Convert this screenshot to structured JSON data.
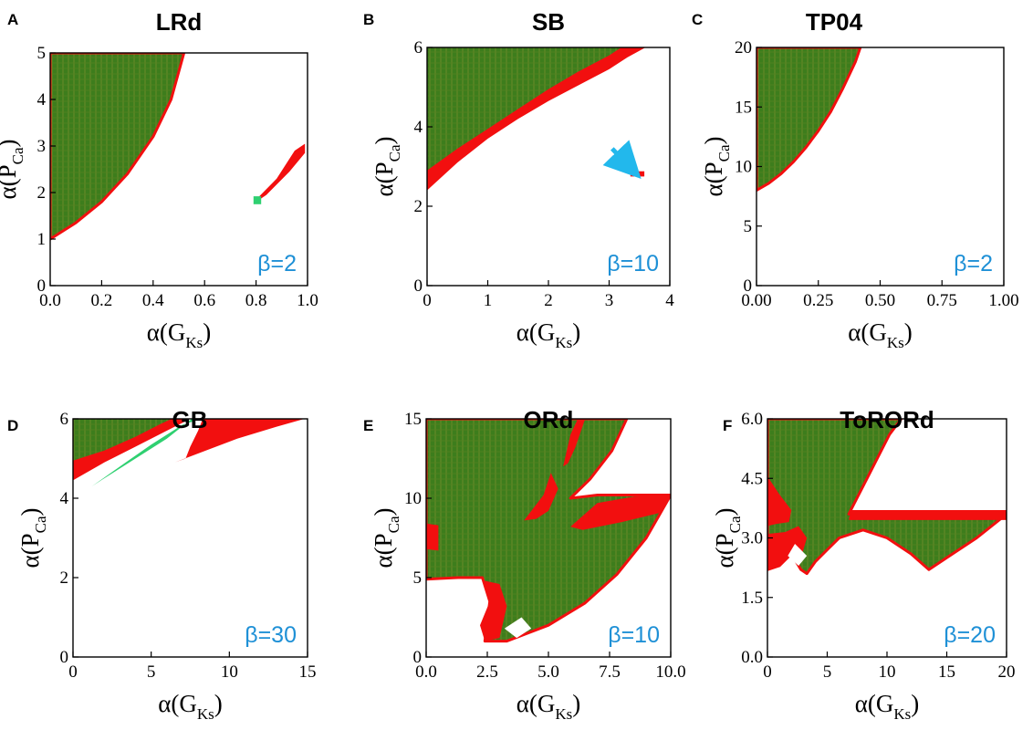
{
  "colors": {
    "green_region": "#3d7d1c",
    "green_hatch": "#6a8a2a",
    "red_region": "#f20f0f",
    "light_green": "#2fd071",
    "beta_text": "#1e90d6",
    "arrow": "#22b8ec"
  },
  "chart_data": [
    {
      "panel": "A",
      "title": "LRd",
      "type": "heatmap",
      "xlabel": "α(G",
      "xlabel_sub": "Ks",
      "xlabel_end": ")",
      "ylabel": "α(P",
      "ylabel_sub": "Ca",
      "ylabel_end": ")",
      "xlim": [
        0,
        1.0
      ],
      "ylim": [
        0,
        5
      ],
      "xticks": [
        0,
        0.2,
        0.4,
        0.6,
        0.8,
        1.0
      ],
      "xtick_labels": [
        "0.0",
        "0.2",
        "0.4",
        "0.6",
        "0.8",
        "1.0"
      ],
      "yticks": [
        0,
        1,
        2,
        3,
        4,
        5
      ],
      "ytick_labels": [
        "0",
        "1",
        "2",
        "3",
        "4",
        "5"
      ],
      "annotation": "β=2",
      "regions": [
        {
          "color": "green",
          "outline": "red",
          "points": [
            [
              0,
              1.0
            ],
            [
              0.1,
              1.35
            ],
            [
              0.2,
              1.8
            ],
            [
              0.3,
              2.4
            ],
            [
              0.4,
              3.2
            ],
            [
              0.47,
              4.0
            ],
            [
              0.52,
              5.0
            ],
            [
              0,
              5
            ]
          ]
        },
        {
          "color": "red",
          "points": [
            [
              0.8,
              1.85
            ],
            [
              0.88,
              2.3
            ],
            [
              0.95,
              2.9
            ],
            [
              0.99,
              3.05
            ],
            [
              0.99,
              2.85
            ],
            [
              0.93,
              2.45
            ],
            [
              0.84,
              1.95
            ],
            [
              0.8,
              1.8
            ]
          ]
        },
        {
          "color": "lightgreen",
          "points": [
            [
              0.79,
              1.75
            ],
            [
              0.82,
              1.75
            ],
            [
              0.82,
              1.92
            ],
            [
              0.79,
              1.92
            ]
          ]
        }
      ]
    },
    {
      "panel": "B",
      "title": "SB",
      "type": "heatmap",
      "xlabel": "α(G",
      "xlabel_sub": "Ks",
      "xlabel_end": ")",
      "ylabel": "α(P",
      "ylabel_sub": "Ca",
      "ylabel_end": ")",
      "xlim": [
        0,
        4
      ],
      "ylim": [
        0,
        6
      ],
      "xticks": [
        0,
        1,
        2,
        3,
        4
      ],
      "xtick_labels": [
        "0",
        "1",
        "2",
        "3",
        "4"
      ],
      "yticks": [
        0,
        2,
        4,
        6
      ],
      "ytick_labels": [
        "0",
        "2",
        "4",
        "6"
      ],
      "annotation": "β=10",
      "regions": [
        {
          "color": "red",
          "points": [
            [
              0,
              2.4
            ],
            [
              0.5,
              3.1
            ],
            [
              1.0,
              3.7
            ],
            [
              1.5,
              4.2
            ],
            [
              2.0,
              4.65
            ],
            [
              2.5,
              5.05
            ],
            [
              3.0,
              5.45
            ],
            [
              3.3,
              5.75
            ],
            [
              3.6,
              6.0
            ],
            [
              0,
              6
            ]
          ]
        },
        {
          "color": "green",
          "points": [
            [
              0,
              2.9
            ],
            [
              0.5,
              3.45
            ],
            [
              1.0,
              3.95
            ],
            [
              1.5,
              4.45
            ],
            [
              2.0,
              4.95
            ],
            [
              2.5,
              5.4
            ],
            [
              3.0,
              5.8
            ],
            [
              3.2,
              6.0
            ],
            [
              0,
              6
            ]
          ]
        },
        {
          "color": "red",
          "points": [
            [
              3.35,
              2.75
            ],
            [
              3.58,
              2.75
            ],
            [
              3.58,
              2.88
            ],
            [
              3.35,
              2.88
            ]
          ]
        }
      ],
      "arrow": {
        "from": [
          3.05,
          3.45
        ],
        "to": [
          3.32,
          3.02
        ]
      }
    },
    {
      "panel": "C",
      "title": "TP04",
      "type": "heatmap",
      "xlabel": "α(G",
      "xlabel_sub": "Ks",
      "xlabel_end": ")",
      "ylabel": "α(P",
      "ylabel_sub": "Ca",
      "ylabel_end": ")",
      "xlim": [
        0,
        1.0
      ],
      "ylim": [
        0,
        20
      ],
      "xticks": [
        0,
        0.25,
        0.5,
        0.75,
        1.0
      ],
      "xtick_labels": [
        "0.00",
        "0.25",
        "0.50",
        "0.75",
        "1.00"
      ],
      "yticks": [
        0,
        5,
        10,
        15,
        20
      ],
      "ytick_labels": [
        "0",
        "5",
        "10",
        "15",
        "20"
      ],
      "annotation": "β=2",
      "regions": [
        {
          "color": "green",
          "outline": "red",
          "points": [
            [
              0,
              8.0
            ],
            [
              0.05,
              8.6
            ],
            [
              0.1,
              9.4
            ],
            [
              0.15,
              10.4
            ],
            [
              0.2,
              11.6
            ],
            [
              0.25,
              13.0
            ],
            [
              0.3,
              14.6
            ],
            [
              0.35,
              16.6
            ],
            [
              0.4,
              18.8
            ],
            [
              0.42,
              20
            ],
            [
              0,
              20
            ]
          ]
        }
      ]
    },
    {
      "panel": "D",
      "title": "GB",
      "type": "heatmap",
      "xlabel": "α(G",
      "xlabel_sub": "Ks",
      "xlabel_end": ")",
      "ylabel": "α(P",
      "ylabel_sub": "Ca",
      "ylabel_end": ")",
      "xlim": [
        0,
        15
      ],
      "ylim": [
        0,
        6
      ],
      "xticks": [
        0,
        5,
        10,
        15
      ],
      "xtick_labels": [
        "0",
        "5",
        "10",
        "15"
      ],
      "yticks": [
        0,
        2,
        4,
        6
      ],
      "ytick_labels": [
        "0",
        "2",
        "4",
        "6"
      ],
      "annotation": "β=30",
      "regions": [
        {
          "color": "red",
          "points": [
            [
              0,
              4.45
            ],
            [
              2,
              4.9
            ],
            [
              4,
              5.3
            ],
            [
              6,
              5.7
            ],
            [
              7.5,
              6.0
            ],
            [
              0,
              6
            ]
          ]
        },
        {
          "color": "green",
          "points": [
            [
              0,
              4.95
            ],
            [
              2,
              5.2
            ],
            [
              4,
              5.55
            ],
            [
              5.5,
              5.85
            ],
            [
              6.3,
              6.0
            ],
            [
              0,
              6
            ]
          ]
        },
        {
          "color": "lightgreen",
          "points": [
            [
              1.2,
              4.3
            ],
            [
              3,
              4.8
            ],
            [
              5,
              5.35
            ],
            [
              7.0,
              5.85
            ],
            [
              8.2,
              6.0
            ],
            [
              7.6,
              6.0
            ],
            [
              6,
              5.5
            ],
            [
              4,
              5.0
            ],
            [
              1.8,
              4.45
            ]
          ]
        },
        {
          "color": "red",
          "points": [
            [
              6.5,
              4.9
            ],
            [
              8.5,
              5.2
            ],
            [
              10.5,
              5.5
            ],
            [
              13,
              5.8
            ],
            [
              14.8,
              6.0
            ],
            [
              8.3,
              6.0
            ],
            [
              8.0,
              5.7
            ],
            [
              7.5,
              5.3
            ],
            [
              7.2,
              5.0
            ]
          ]
        }
      ]
    },
    {
      "panel": "E",
      "title": "ORd",
      "type": "heatmap",
      "xlabel": "α(G",
      "xlabel_sub": "Ks",
      "xlabel_end": ")",
      "ylabel": "α(P",
      "ylabel_sub": "Ca",
      "ylabel_end": ")",
      "xlim": [
        0,
        10.0
      ],
      "ylim": [
        0,
        15
      ],
      "xticks": [
        0,
        2.5,
        5.0,
        7.5,
        10.0
      ],
      "xtick_labels": [
        "0.0",
        "2.5",
        "5.0",
        "7.5",
        "10.0"
      ],
      "yticks": [
        0,
        5,
        10,
        15
      ],
      "ytick_labels": [
        "0",
        "5",
        "10",
        "15"
      ],
      "annotation": "β=10",
      "regions": [
        {
          "color": "green",
          "outline": "red",
          "points": [
            [
              0,
              4.9
            ],
            [
              1.3,
              5.0
            ],
            [
              2.3,
              5.0
            ],
            [
              2.6,
              3.5
            ],
            [
              2.4,
              1.0
            ],
            [
              3.3,
              1.0
            ],
            [
              5.0,
              2.0
            ],
            [
              6.5,
              3.4
            ],
            [
              7.8,
              5.2
            ],
            [
              9.0,
              7.5
            ],
            [
              10.0,
              10.2
            ],
            [
              7.0,
              10.2
            ],
            [
              5.9,
              10.0
            ],
            [
              6.7,
              11.2
            ],
            [
              7.6,
              13.0
            ],
            [
              8.2,
              15.0
            ],
            [
              0,
              15
            ]
          ]
        },
        {
          "color": "red",
          "points": [
            [
              5.9,
              8.2
            ],
            [
              7.0,
              9.7
            ],
            [
              8.5,
              10.1
            ],
            [
              10.0,
              10.2
            ],
            [
              9.6,
              9.1
            ],
            [
              8.0,
              8.5
            ],
            [
              6.4,
              8.0
            ]
          ]
        },
        {
          "color": "red",
          "points": [
            [
              2.4,
              4.8
            ],
            [
              3.0,
              4.6
            ],
            [
              3.3,
              3.2
            ],
            [
              3.0,
              1.2
            ],
            [
              2.4,
              1.0
            ],
            [
              2.2,
              2.0
            ],
            [
              2.6,
              3.5
            ]
          ]
        },
        {
          "color": "red",
          "points": [
            [
              0,
              6.8
            ],
            [
              0.5,
              6.7
            ],
            [
              0.5,
              8.3
            ],
            [
              0,
              8.4
            ]
          ]
        },
        {
          "color": "red",
          "points": [
            [
              4.0,
              8.6
            ],
            [
              4.8,
              10.2
            ],
            [
              5.1,
              11.6
            ],
            [
              5.4,
              10.6
            ],
            [
              5.0,
              9.2
            ],
            [
              4.5,
              8.7
            ]
          ]
        },
        {
          "color": "red",
          "points": [
            [
              5.6,
              12.0
            ],
            [
              5.9,
              14.0
            ],
            [
              6.2,
              15.0
            ],
            [
              6.5,
              15.0
            ],
            [
              6.1,
              13.2
            ],
            [
              5.8,
              12.2
            ]
          ]
        },
        {
          "color": "white",
          "points": [
            [
              3.2,
              1.8
            ],
            [
              3.9,
              2.5
            ],
            [
              4.3,
              1.8
            ],
            [
              3.7,
              1.2
            ]
          ]
        }
      ]
    },
    {
      "panel": "F",
      "title": "ToRORd",
      "type": "heatmap",
      "xlabel": "α(G",
      "xlabel_sub": "Ks",
      "xlabel_end": ")",
      "ylabel": "α(P",
      "ylabel_sub": "Ca",
      "ylabel_end": ")",
      "xlim": [
        0,
        20
      ],
      "ylim": [
        0,
        6.0
      ],
      "xticks": [
        0,
        5,
        10,
        15,
        20
      ],
      "xtick_labels": [
        "0",
        "5",
        "10",
        "15",
        "20"
      ],
      "yticks": [
        0,
        1.5,
        3.0,
        4.5,
        6.0
      ],
      "ytick_labels": [
        "0.0",
        "1.5",
        "3.0",
        "4.5",
        "6.0"
      ],
      "annotation": "β=20",
      "regions": [
        {
          "color": "green",
          "outline": "red",
          "points": [
            [
              0,
              2.2
            ],
            [
              1.0,
              2.3
            ],
            [
              2.0,
              2.6
            ],
            [
              2.8,
              2.2
            ],
            [
              3.3,
              2.1
            ],
            [
              4.0,
              2.4
            ],
            [
              5.0,
              2.7
            ],
            [
              6.0,
              3.0
            ],
            [
              8.0,
              3.2
            ],
            [
              10.0,
              3.0
            ],
            [
              12.0,
              2.6
            ],
            [
              13.5,
              2.2
            ],
            [
              15.5,
              2.6
            ],
            [
              17.5,
              3.0
            ],
            [
              20.0,
              3.6
            ],
            [
              6.8,
              3.6
            ],
            [
              8.5,
              4.6
            ],
            [
              10.2,
              5.6
            ],
            [
              11.2,
              6.0
            ],
            [
              0,
              6.0
            ]
          ]
        },
        {
          "color": "red",
          "points": [
            [
              6.8,
              3.45
            ],
            [
              20.0,
              3.45
            ],
            [
              20.0,
              3.7
            ],
            [
              7.0,
              3.7
            ]
          ]
        },
        {
          "color": "red",
          "points": [
            [
              0,
              4.55
            ],
            [
              1.0,
              4.1
            ],
            [
              2.0,
              3.7
            ],
            [
              1.8,
              3.4
            ],
            [
              0.7,
              3.35
            ],
            [
              0,
              3.3
            ]
          ]
        },
        {
          "color": "red",
          "points": [
            [
              0,
              3.1
            ],
            [
              1.5,
              3.15
            ],
            [
              2.6,
              3.3
            ],
            [
              3.3,
              3.0
            ],
            [
              2.9,
              2.6
            ],
            [
              2.0,
              2.6
            ],
            [
              1.0,
              2.3
            ],
            [
              0,
              2.2
            ]
          ]
        },
        {
          "color": "white",
          "points": [
            [
              1.7,
              2.55
            ],
            [
              2.3,
              2.85
            ],
            [
              3.3,
              2.55
            ],
            [
              2.6,
              2.3
            ]
          ]
        }
      ]
    }
  ]
}
